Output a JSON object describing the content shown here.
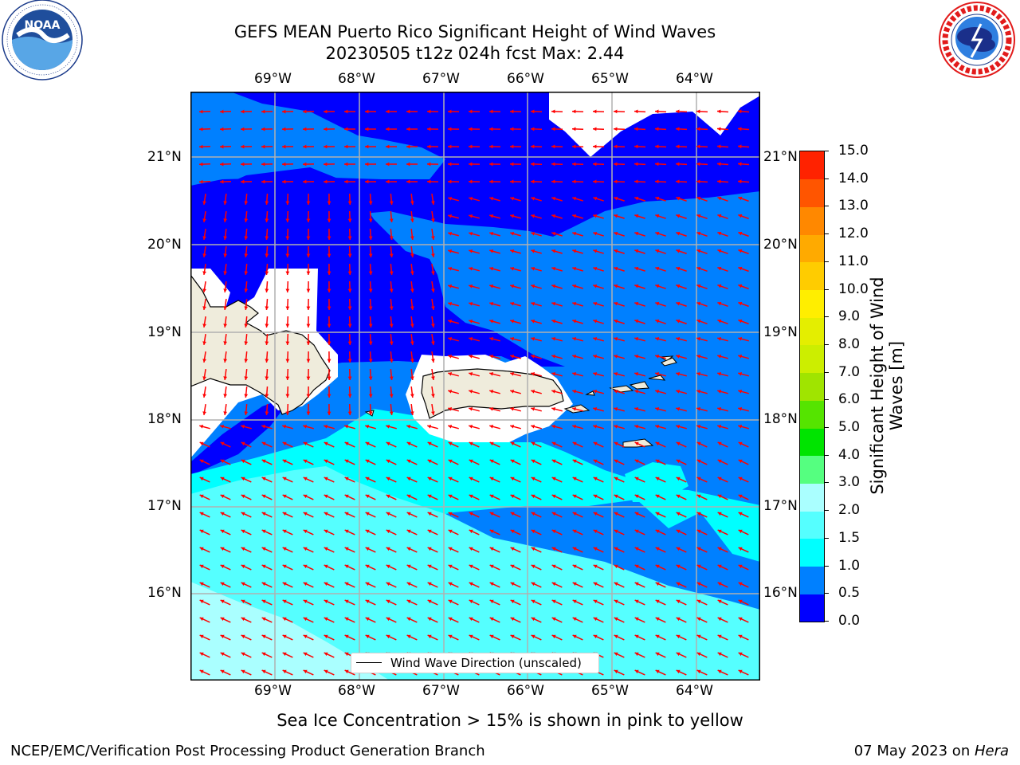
{
  "title": {
    "line1": "GEFS MEAN Puerto Rico Significant Height of Wind Waves",
    "line2": "20230505 t12z 024h fcst   Max: 2.44"
  },
  "logos": {
    "left": {
      "name": "NOAA",
      "ring_text": "NATIONAL OCEANIC AND ATMOSPHERIC ADMINISTRATION • U.S. DEPARTMENT OF COMMERCE"
    },
    "right": {
      "name": "NATIONAL WEATHER SERVICE"
    }
  },
  "map": {
    "lon_ticks": [
      "69°W",
      "68°W",
      "67°W",
      "66°W",
      "65°W",
      "64°W"
    ],
    "lat_ticks": [
      "21°N",
      "20°N",
      "19°N",
      "18°N",
      "17°N",
      "16°N"
    ],
    "legend_label": "Wind Wave Direction (unscaled)",
    "colors": {
      "land": "#efecdc",
      "arrow": "#ff0000",
      "grid": "#b0b0b0",
      "blue": "#0000ff",
      "mid_blue": "#0080ff",
      "cyan": "#00ffff",
      "light_cyan": "#55ffff",
      "pale_cyan": "#aaffff"
    }
  },
  "colorbar": {
    "label": "Significant Height of Wind Waves [m]",
    "ticks": [
      "15.0",
      "14.0",
      "13.0",
      "12.0",
      "11.0",
      "10.0",
      "9.0",
      "8.0",
      "7.0",
      "6.0",
      "5.0",
      "4.0",
      "3.0",
      "2.0",
      "1.5",
      "1.0",
      "0.5",
      "0.0"
    ],
    "colors_bottom_to_top": [
      "#0000ff",
      "#0080ff",
      "#00ffff",
      "#55ffff",
      "#aaffff",
      "#55ff80",
      "#00e400",
      "#55e400",
      "#a0e400",
      "#ccee00",
      "#e4ee00",
      "#ffee00",
      "#ffcc00",
      "#ffaa00",
      "#ff8800",
      "#ff5500",
      "#ff2200"
    ]
  },
  "footer": {
    "note": "Sea Ice Concentration > 15% is shown in pink to yellow",
    "credit": "NCEP/EMC/Verification Post Processing Product Generation Branch",
    "date": "07 May 2023 on ",
    "machine": "Hera"
  }
}
